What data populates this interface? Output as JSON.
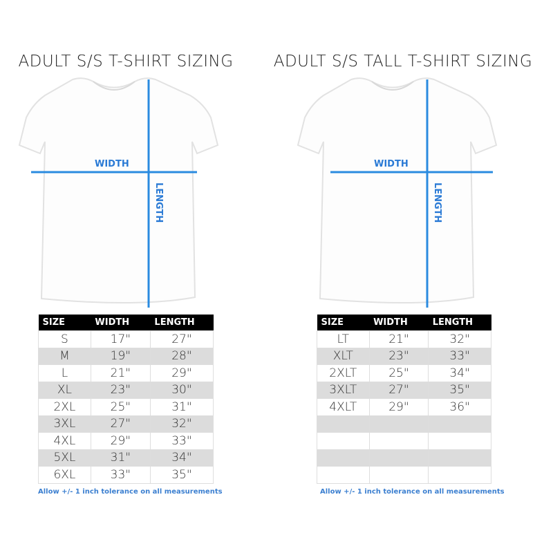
{
  "accent_color": "#2a8be0",
  "charts": [
    {
      "title": "ADULT S/S T-SHIRT SIZING",
      "width_label": "WIDTH",
      "length_label": "LENGTH",
      "headers": [
        "SIZE",
        "WIDTH",
        "LENGTH"
      ],
      "rows": [
        [
          "S",
          "17\"",
          "27\""
        ],
        [
          "M",
          "19\"",
          "28\""
        ],
        [
          "L",
          "21\"",
          "29\""
        ],
        [
          "XL",
          "23\"",
          "30\""
        ],
        [
          "2XL",
          "25\"",
          "31\""
        ],
        [
          "3XL",
          "27\"",
          "32\""
        ],
        [
          "4XL",
          "29\"",
          "33\""
        ],
        [
          "5XL",
          "31\"",
          "34\""
        ],
        [
          "6XL",
          "33\"",
          "35\""
        ]
      ],
      "note": "Allow +/- 1 inch tolerance on all measurements"
    },
    {
      "title": "ADULT S/S TALL T-SHIRT SIZING",
      "width_label": "WIDTH",
      "length_label": "LENGTH",
      "headers": [
        "SIZE",
        "WIDTH",
        "LENGTH"
      ],
      "rows": [
        [
          "LT",
          "21\"",
          "32\""
        ],
        [
          "XLT",
          "23\"",
          "33\""
        ],
        [
          "2XLT",
          "25\"",
          "34\""
        ],
        [
          "3XLT",
          "27\"",
          "35\""
        ],
        [
          "4XLT",
          "29\"",
          "36\""
        ],
        [
          "",
          "",
          ""
        ],
        [
          "",
          "",
          ""
        ],
        [
          "",
          "",
          ""
        ],
        [
          "",
          "",
          ""
        ]
      ],
      "note": "Allow +/- 1 inch tolerance on all measurements"
    }
  ]
}
